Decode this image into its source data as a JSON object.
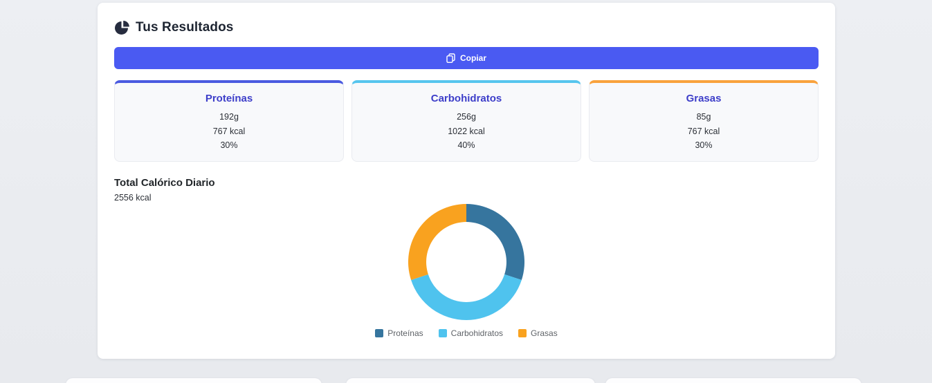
{
  "page": {
    "background": "#e9ebef"
  },
  "header": {
    "title": "Tus Resultados",
    "icon": "pie-chart-icon",
    "icon_color": "#262c3f"
  },
  "toolbar": {
    "copy_label": "Copiar",
    "copy_icon": "copy-icon",
    "button_color": "#4a5af2"
  },
  "macros": {
    "title_color": "#3d3ec9",
    "cards": [
      {
        "title": "Proteínas",
        "grams": "192g",
        "kcal": "767 kcal",
        "percent": "30%",
        "accent": "#4a5ae0"
      },
      {
        "title": "Carbohidratos",
        "grams": "256g",
        "kcal": "1022 kcal",
        "percent": "40%",
        "accent": "#56c5ee"
      },
      {
        "title": "Grasas",
        "grams": "85g",
        "kcal": "767 kcal",
        "percent": "30%",
        "accent": "#f9a23c"
      }
    ]
  },
  "total": {
    "label": "Total Calórico Diario",
    "value": "2556 kcal"
  },
  "chart_data": {
    "type": "pie",
    "subtype": "donut",
    "categories": [
      "Proteínas",
      "Carbohidratos",
      "Grasas"
    ],
    "values": [
      30,
      40,
      30
    ],
    "unit": "percent",
    "grams": [
      192,
      256,
      85
    ],
    "kcal": [
      767,
      1022,
      767
    ],
    "total_kcal": 2556,
    "colors": [
      "#36759e",
      "#4fc3ee",
      "#f9a21f"
    ],
    "start_angle_deg": -90,
    "direction": "clockwise",
    "inner_radius_ratio": 0.69,
    "legend_position": "bottom",
    "legend": [
      "Proteínas",
      "Carbohidratos",
      "Grasas"
    ],
    "title": ""
  }
}
